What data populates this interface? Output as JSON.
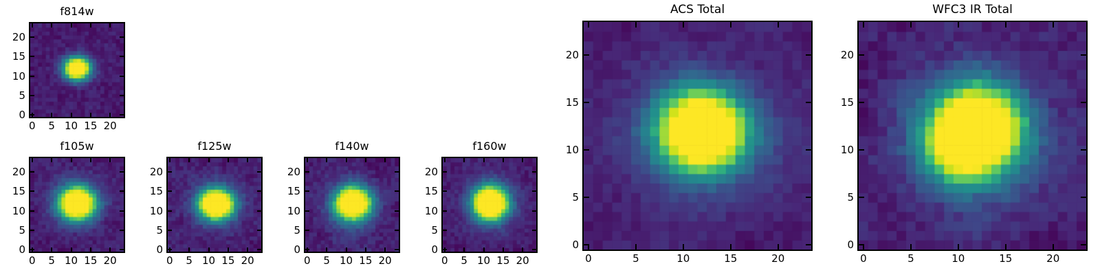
{
  "figure": {
    "background": "#ffffff",
    "text_color": "#000000",
    "spine_color": "#000000"
  },
  "chart_data": {
    "type": "heatmap",
    "colormap": "viridis",
    "colormap_stops": [
      "#440154",
      "#482878",
      "#3e4989",
      "#31688e",
      "#26828e",
      "#21918c",
      "#35b779",
      "#6dcd59",
      "#a0da39",
      "#d2e21b",
      "#fde725"
    ],
    "axes": {
      "grid_size": 24,
      "xlim": [
        -0.5,
        23.5
      ],
      "ylim": [
        -0.5,
        23.5
      ],
      "xticks": [
        0,
        5,
        10,
        15,
        20
      ],
      "yticks": [
        0,
        5,
        10,
        15,
        20
      ],
      "tick_direction": "in",
      "ticks_all_sides": true
    },
    "panels": [
      {
        "id": "f814w",
        "title": "f814w",
        "size": "small",
        "peak_xy": [
          11.5,
          12
        ],
        "psf": {
          "background": 0.07,
          "noise": 0.045,
          "blotch": 0.02,
          "seed": 11,
          "components": [
            {
              "amp": 1.4,
              "cx": 11.5,
              "cy": 12.0,
              "sx": 2.3,
              "sy": 2.0
            }
          ]
        }
      },
      {
        "id": "f105w",
        "title": "f105w",
        "size": "small",
        "peak_xy": [
          11.5,
          12
        ],
        "psf": {
          "background": 0.07,
          "noise": 0.05,
          "blotch": 0.025,
          "seed": 21,
          "components": [
            {
              "amp": 1.45,
              "cx": 11.5,
              "cy": 12.0,
              "sx": 3.0,
              "sy": 2.7
            },
            {
              "amp": 0.15,
              "cx": 11.5,
              "cy": 12.0,
              "sx": 5.5,
              "sy": 5.0
            }
          ]
        }
      },
      {
        "id": "f125w",
        "title": "f125w",
        "size": "small",
        "peak_xy": [
          12,
          11.8
        ],
        "psf": {
          "background": 0.07,
          "noise": 0.05,
          "blotch": 0.025,
          "seed": 31,
          "components": [
            {
              "amp": 1.45,
              "cx": 12.0,
              "cy": 11.8,
              "sx": 2.9,
              "sy": 2.5
            },
            {
              "amp": 0.15,
              "cx": 12.0,
              "cy": 11.8,
              "sx": 5.5,
              "sy": 5.0
            }
          ]
        }
      },
      {
        "id": "f140w",
        "title": "f140w",
        "size": "small",
        "peak_xy": [
          11.7,
          12
        ],
        "psf": {
          "background": 0.07,
          "noise": 0.05,
          "blotch": 0.03,
          "seed": 41,
          "components": [
            {
              "amp": 1.45,
              "cx": 11.7,
              "cy": 12.0,
              "sx": 3.0,
              "sy": 2.7
            },
            {
              "amp": 0.16,
              "cx": 11.0,
              "cy": 11.0,
              "sx": 5.5,
              "sy": 5.5
            }
          ]
        }
      },
      {
        "id": "f160w",
        "title": "f160w",
        "size": "small",
        "peak_xy": [
          11.7,
          12
        ],
        "psf": {
          "background": 0.07,
          "noise": 0.045,
          "blotch": 0.02,
          "seed": 51,
          "components": [
            {
              "amp": 1.5,
              "cx": 11.7,
              "cy": 12.0,
              "sx": 2.9,
              "sy": 2.8
            },
            {
              "amp": 0.15,
              "cx": 11.7,
              "cy": 12.0,
              "sx": 5.2,
              "sy": 5.2
            }
          ]
        }
      },
      {
        "id": "acs-total",
        "title": "ACS Total",
        "size": "large",
        "peak_xy": [
          12,
          12
        ],
        "psf": {
          "background": 0.065,
          "noise": 0.035,
          "blotch": 0.03,
          "seed": 61,
          "components": [
            {
              "amp": 1.5,
              "cx": 12.0,
              "cy": 12.0,
              "sx": 3.0,
              "sy": 2.7
            },
            {
              "amp": 0.17,
              "cx": 12.0,
              "cy": 12.0,
              "sx": 6.0,
              "sy": 5.5
            }
          ]
        }
      },
      {
        "id": "wfc3-ir-total",
        "title": "WFC3 IR Total",
        "size": "large",
        "peak_xy": [
          12,
          12.2
        ],
        "psf": {
          "background": 0.065,
          "noise": 0.05,
          "blotch": 0.04,
          "seed": 71,
          "components": [
            {
              "amp": 1.5,
              "cx": 12.0,
              "cy": 12.2,
              "sx": 3.1,
              "sy": 2.9
            },
            {
              "amp": 0.2,
              "cx": 11.5,
              "cy": 11.5,
              "sx": 6.0,
              "sy": 6.0
            },
            {
              "amp": 0.45,
              "cx": 10.0,
              "cy": 10.0,
              "sx": 2.3,
              "sy": 2.3
            }
          ]
        }
      }
    ]
  }
}
